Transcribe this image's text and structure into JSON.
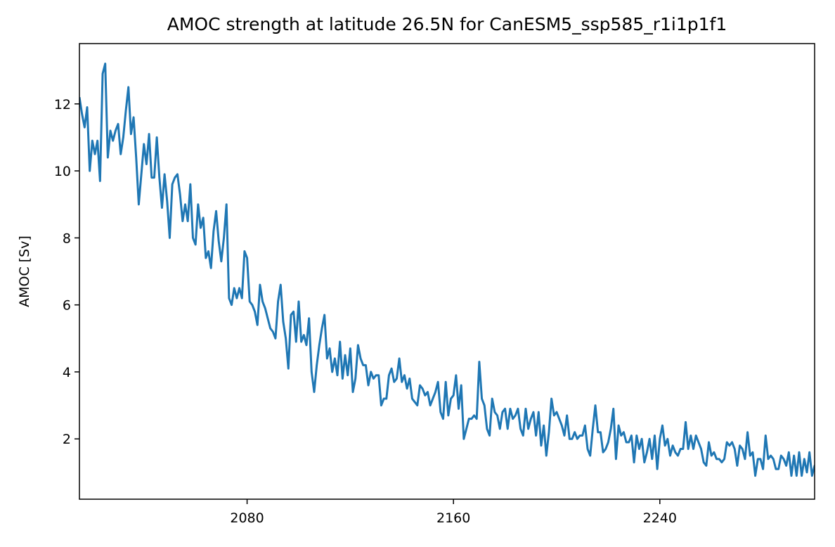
{
  "chart_data": {
    "type": "line",
    "title": "AMOC strength at latitude 26.5N for CanESM5_ssp585_r1i1p1f1",
    "xlabel": "",
    "ylabel": "AMOC [Sv]",
    "xlim": [
      2015,
      2300
    ],
    "ylim": [
      0.2,
      13.8
    ],
    "xticks": [
      2080,
      2160,
      2240
    ],
    "yticks": [
      2,
      4,
      6,
      8,
      10,
      12
    ],
    "grid": false,
    "series": [
      {
        "color": "#1f77b4",
        "x_start": 2015,
        "x_step": 1,
        "values": [
          12.2,
          11.7,
          11.3,
          11.9,
          10.0,
          10.9,
          10.5,
          10.9,
          9.7,
          12.9,
          13.2,
          10.4,
          11.2,
          10.9,
          11.2,
          11.4,
          10.5,
          11.0,
          11.8,
          12.5,
          11.1,
          11.6,
          10.4,
          9.0,
          9.9,
          10.8,
          10.2,
          11.1,
          9.8,
          9.8,
          11.0,
          9.8,
          8.9,
          9.9,
          9.1,
          8.0,
          9.6,
          9.8,
          9.9,
          9.3,
          8.5,
          9.0,
          8.5,
          9.6,
          8.0,
          7.8,
          9.0,
          8.3,
          8.6,
          7.4,
          7.6,
          7.1,
          8.2,
          8.8,
          7.9,
          7.3,
          8.0,
          9.0,
          6.2,
          6.0,
          6.5,
          6.2,
          6.5,
          6.2,
          7.6,
          7.4,
          6.1,
          6.0,
          5.8,
          5.4,
          6.6,
          6.1,
          5.9,
          5.6,
          5.3,
          5.2,
          5.0,
          6.1,
          6.6,
          5.5,
          5.0,
          4.1,
          5.7,
          5.8,
          4.9,
          6.1,
          4.9,
          5.1,
          4.8,
          5.6,
          4.0,
          3.4,
          4.2,
          4.8,
          5.3,
          5.7,
          4.4,
          4.7,
          4.0,
          4.4,
          3.9,
          4.9,
          3.8,
          4.5,
          3.9,
          4.7,
          3.4,
          3.8,
          4.8,
          4.4,
          4.2,
          4.2,
          3.6,
          4.0,
          3.8,
          3.9,
          3.9,
          3.0,
          3.2,
          3.2,
          3.9,
          4.1,
          3.7,
          3.8,
          4.4,
          3.7,
          3.9,
          3.5,
          3.8,
          3.2,
          3.1,
          3.0,
          3.6,
          3.5,
          3.3,
          3.4,
          3.0,
          3.2,
          3.4,
          3.7,
          2.8,
          2.6,
          3.7,
          2.7,
          3.2,
          3.3,
          3.9,
          2.9,
          3.6,
          2.0,
          2.3,
          2.6,
          2.6,
          2.7,
          2.6,
          4.3,
          3.2,
          3.0,
          2.3,
          2.1,
          3.2,
          2.8,
          2.7,
          2.3,
          2.8,
          2.9,
          2.3,
          2.9,
          2.6,
          2.7,
          2.9,
          2.3,
          2.1,
          2.9,
          2.3,
          2.6,
          2.8,
          2.1,
          2.8,
          1.8,
          2.4,
          1.5,
          2.2,
          3.2,
          2.7,
          2.8,
          2.6,
          2.4,
          2.1,
          2.7,
          2.0,
          2.0,
          2.2,
          2.0,
          2.1,
          2.1,
          2.4,
          1.7,
          1.5,
          2.3,
          3.0,
          2.2,
          2.2,
          1.6,
          1.7,
          1.9,
          2.3,
          2.9,
          1.4,
          2.4,
          2.1,
          2.2,
          1.9,
          1.9,
          2.1,
          1.3,
          2.1,
          1.7,
          2.0,
          1.3,
          1.6,
          2.0,
          1.4,
          2.1,
          1.1,
          2.0,
          2.4,
          1.8,
          2.0,
          1.5,
          1.8,
          1.6,
          1.5,
          1.7,
          1.7,
          2.5,
          1.7,
          2.1,
          1.7,
          2.1,
          1.9,
          1.7,
          1.3,
          1.2,
          1.9,
          1.5,
          1.6,
          1.4,
          1.4,
          1.3,
          1.4,
          1.9,
          1.8,
          1.9,
          1.7,
          1.2,
          1.8,
          1.7,
          1.4,
          2.2,
          1.5,
          1.6,
          0.9,
          1.4,
          1.4,
          1.1,
          2.1,
          1.4,
          1.5,
          1.4,
          1.1,
          1.1,
          1.5,
          1.4,
          1.2,
          1.6,
          0.9,
          1.5,
          0.9,
          1.6,
          0.9,
          1.4,
          1.0,
          1.6,
          0.9,
          1.2,
          1.1,
          1.3,
          1.1
        ]
      }
    ]
  }
}
